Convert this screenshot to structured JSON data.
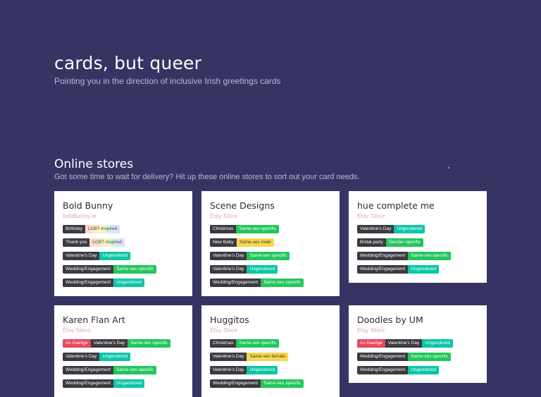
{
  "hero": {
    "title": "cards, but queer",
    "subtitle": "Pointing you in the direction of inclusive Irish greetings cards"
  },
  "online": {
    "title": "Online stores",
    "subtitle": "Got some time to wait for delivery? Hit up these online stores to sort out your card needs."
  },
  "colors": {
    "background": "#363463",
    "dark_tag": "#3a3a40",
    "red_tag": "#e8475f",
    "green_tag": "#22c65b",
    "teal_tag": "#0bc6a6",
    "yellow_tag": "#f6d84f",
    "link": "#e2a6b8"
  },
  "stores": [
    {
      "name": "Bold Bunny",
      "link": "boldbunny.ie",
      "tags": [
        [
          {
            "text": "Birthday",
            "style": "dark"
          },
          {
            "text": "LGBT-inspired",
            "style": "rainbow"
          }
        ],
        [
          {
            "text": "Thank you",
            "style": "dark"
          },
          {
            "text": "LGBT-inspired",
            "style": "rainbow"
          }
        ],
        [
          {
            "text": "Valentine's Day",
            "style": "dark"
          },
          {
            "text": "Ungendered",
            "style": "teal"
          }
        ],
        [
          {
            "text": "Wedding/Engagement",
            "style": "dark"
          },
          {
            "text": "Same-sex specific",
            "style": "green"
          }
        ],
        [
          {
            "text": "Wedding/Engagement",
            "style": "dark"
          },
          {
            "text": "Ungendered",
            "style": "teal"
          }
        ]
      ]
    },
    {
      "name": "Scene Designs",
      "link": "Etsy Store",
      "tags": [
        [
          {
            "text": "Christmas",
            "style": "dark"
          },
          {
            "text": "Same-sex specific",
            "style": "green"
          }
        ],
        [
          {
            "text": "New Baby",
            "style": "dark"
          },
          {
            "text": "Same-sex male",
            "style": "yellow"
          }
        ],
        [
          {
            "text": "Valentine's Day",
            "style": "dark"
          },
          {
            "text": "Same-sex specific",
            "style": "green"
          }
        ],
        [
          {
            "text": "Valentine's Day",
            "style": "dark"
          },
          {
            "text": "Ungendered",
            "style": "teal"
          }
        ],
        [
          {
            "text": "Wedding/Engagement",
            "style": "dark"
          },
          {
            "text": "Same-sex specific",
            "style": "green"
          }
        ]
      ]
    },
    {
      "name": "hue complete me",
      "link": "Etsy Store",
      "tags": [
        [
          {
            "text": "Valentine's Day",
            "style": "dark"
          },
          {
            "text": "Ungendered",
            "style": "teal"
          }
        ],
        [
          {
            "text": "Bridal party",
            "style": "dark"
          },
          {
            "text": "Gender specific",
            "style": "green"
          }
        ],
        [
          {
            "text": "Wedding/Engagement",
            "style": "dark"
          },
          {
            "text": "Same-sex specific",
            "style": "green"
          }
        ],
        [
          {
            "text": "Wedding/Engagement",
            "style": "dark"
          },
          {
            "text": "Ungendered",
            "style": "teal"
          }
        ]
      ]
    },
    {
      "name": "Karen Flan Art",
      "link": "Etsy Store",
      "tags": [
        [
          {
            "text": "As Gaeilge",
            "style": "red"
          },
          {
            "text": "Valentine's Day",
            "style": "dark"
          },
          {
            "text": "Same-sex specific",
            "style": "green"
          }
        ],
        [
          {
            "text": "Valentine's Day",
            "style": "dark"
          },
          {
            "text": "Ungendered",
            "style": "teal"
          }
        ],
        [
          {
            "text": "Wedding/Engagement",
            "style": "dark"
          },
          {
            "text": "Same-sex specific",
            "style": "green"
          }
        ],
        [
          {
            "text": "Wedding/Engagement",
            "style": "dark"
          },
          {
            "text": "Ungendered",
            "style": "teal"
          }
        ]
      ]
    },
    {
      "name": "Huggitos",
      "link": "Etsy Store",
      "tags": [
        [
          {
            "text": "Christmas",
            "style": "dark"
          },
          {
            "text": "Same-sex specific",
            "style": "green"
          }
        ],
        [
          {
            "text": "Valentine's Day",
            "style": "dark"
          },
          {
            "text": "Same-sex female",
            "style": "yellow"
          }
        ],
        [
          {
            "text": "Valentine's Day",
            "style": "dark"
          },
          {
            "text": "Ungendered",
            "style": "teal"
          }
        ],
        [
          {
            "text": "Wedding/Engagement",
            "style": "dark"
          },
          {
            "text": "Same-sex specific",
            "style": "green"
          }
        ]
      ]
    },
    {
      "name": "Doodles by UM",
      "link": "Etsy Store",
      "tags": [
        [
          {
            "text": "As Gaeilge",
            "style": "red"
          },
          {
            "text": "Valentine's Day",
            "style": "dark"
          },
          {
            "text": "Ungendered",
            "style": "teal"
          }
        ],
        [
          {
            "text": "Wedding/Engagement",
            "style": "dark"
          },
          {
            "text": "Same-sex specific",
            "style": "green"
          }
        ],
        [
          {
            "text": "Wedding/Engagement",
            "style": "dark"
          },
          {
            "text": "Ungendered",
            "style": "teal"
          }
        ]
      ]
    }
  ]
}
